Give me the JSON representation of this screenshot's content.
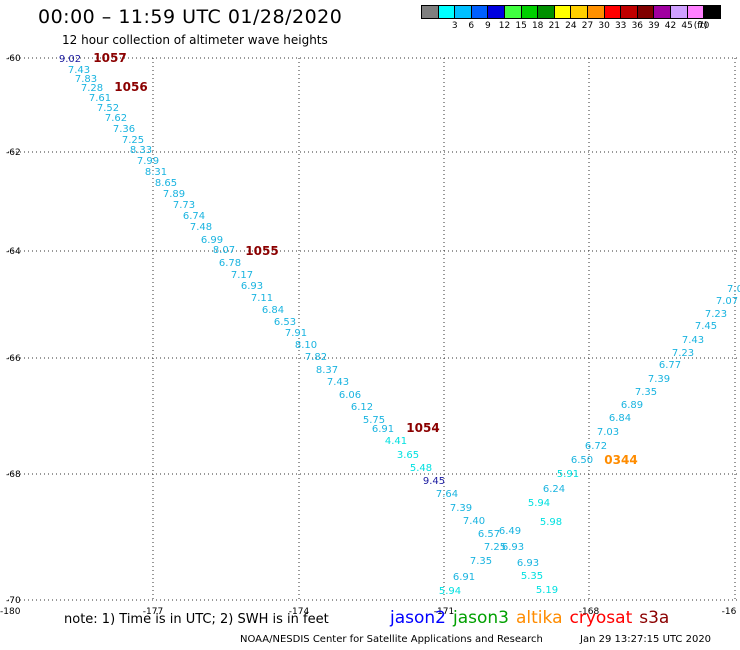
{
  "header": {
    "title": "00:00 – 11:59 UTC 01/28/2020",
    "subtitle": "12 hour collection of altimeter wave heights"
  },
  "scale": {
    "unit": "(ft)",
    "bins": [
      {
        "label": "",
        "color": "#7f7f7f"
      },
      {
        "label": "3",
        "color": "#00ffff"
      },
      {
        "label": "6",
        "color": "#00c0ff"
      },
      {
        "label": "9",
        "color": "#0060ff"
      },
      {
        "label": "12",
        "color": "#0000e0"
      },
      {
        "label": "15",
        "color": "#40ff40"
      },
      {
        "label": "18",
        "color": "#00d000"
      },
      {
        "label": "21",
        "color": "#009000"
      },
      {
        "label": "24",
        "color": "#ffff00"
      },
      {
        "label": "27",
        "color": "#ffd000"
      },
      {
        "label": "30",
        "color": "#ff9000"
      },
      {
        "label": "33",
        "color": "#ff0000"
      },
      {
        "label": "36",
        "color": "#c00000"
      },
      {
        "label": "39",
        "color": "#800000"
      },
      {
        "label": "42",
        "color": "#a000a0"
      },
      {
        "label": "45",
        "color": "#d0a0ff"
      },
      {
        "label": "70",
        "color": "#ff80ff"
      },
      {
        "label": "",
        "color": "#000000"
      }
    ]
  },
  "map": {
    "lon_labels": [
      "-180",
      "-177",
      "-174",
      "-171",
      "-168",
      "-16"
    ],
    "lat_labels": [
      "-60",
      "-62",
      "-64",
      "-66",
      "-68",
      "-70"
    ],
    "pass_labels": [
      {
        "text": "1057",
        "color": "#8b0000"
      },
      {
        "text": "1056",
        "color": "#8b0000"
      },
      {
        "text": "1055",
        "color": "#8b0000"
      },
      {
        "text": "1054",
        "color": "#8b0000"
      },
      {
        "text": "0344",
        "color": "#ff8c00"
      }
    ],
    "readings": [
      {
        "text": "9.02",
        "color": "#1a1aa0"
      },
      {
        "text": "7.43",
        "color": "#1ab4e0"
      },
      {
        "text": "7.83",
        "color": "#1ab4e0"
      },
      {
        "text": "7.28",
        "color": "#1ab4e0"
      },
      {
        "text": "7.61",
        "color": "#1ab4e0"
      },
      {
        "text": "7.52",
        "color": "#1ab4e0"
      },
      {
        "text": "7.62",
        "color": "#1ab4e0"
      },
      {
        "text": "7.36",
        "color": "#1ab4e0"
      },
      {
        "text": "7.25",
        "color": "#1ab4e0"
      },
      {
        "text": "8.33",
        "color": "#1ab4e0"
      },
      {
        "text": "7.99",
        "color": "#1ab4e0"
      },
      {
        "text": "8.31",
        "color": "#1ab4e0"
      },
      {
        "text": "8.65",
        "color": "#1ab4e0"
      },
      {
        "text": "7.89",
        "color": "#1ab4e0"
      },
      {
        "text": "7.73",
        "color": "#1ab4e0"
      },
      {
        "text": "6.74",
        "color": "#1ab4e0"
      },
      {
        "text": "7.48",
        "color": "#1ab4e0"
      },
      {
        "text": "6.99",
        "color": "#1ab4e0"
      },
      {
        "text": "8.07",
        "color": "#1ab4e0"
      },
      {
        "text": "6.78",
        "color": "#1ab4e0"
      },
      {
        "text": "7.17",
        "color": "#1ab4e0"
      },
      {
        "text": "6.93",
        "color": "#1ab4e0"
      },
      {
        "text": "7.11",
        "color": "#1ab4e0"
      },
      {
        "text": "6.84",
        "color": "#1ab4e0"
      },
      {
        "text": "6.53",
        "color": "#1ab4e0"
      },
      {
        "text": "7.91",
        "color": "#1ab4e0"
      },
      {
        "text": "8.10",
        "color": "#1ab4e0"
      },
      {
        "text": "7.82",
        "color": "#1ab4e0"
      },
      {
        "text": "8.37",
        "color": "#1ab4e0"
      },
      {
        "text": "7.43",
        "color": "#1ab4e0"
      },
      {
        "text": "6.06",
        "color": "#1ab4e0"
      },
      {
        "text": "6.12",
        "color": "#1ab4e0"
      },
      {
        "text": "5.75",
        "color": "#1ab4e0"
      },
      {
        "text": "6.91",
        "color": "#1ab4e0"
      },
      {
        "text": "4.41",
        "color": "#00e0e0"
      },
      {
        "text": "3.65",
        "color": "#00e0e0"
      },
      {
        "text": "5.48",
        "color": "#00e0e0"
      },
      {
        "text": "9.45",
        "color": "#1a1aa0"
      },
      {
        "text": "7.64",
        "color": "#1ab4e0"
      },
      {
        "text": "7.39",
        "color": "#1ab4e0"
      },
      {
        "text": "7.40",
        "color": "#1ab4e0"
      },
      {
        "text": "6.57",
        "color": "#1ab4e0"
      },
      {
        "text": "6.49",
        "color": "#1ab4e0"
      },
      {
        "text": "7.25",
        "color": "#1ab4e0"
      },
      {
        "text": "6.93",
        "color": "#1ab4e0"
      },
      {
        "text": "7.35",
        "color": "#1ab4e0"
      },
      {
        "text": "6.93",
        "color": "#1ab4e0"
      },
      {
        "text": "6.91",
        "color": "#1ab4e0"
      },
      {
        "text": "5.35",
        "color": "#00e0e0"
      },
      {
        "text": "5.94",
        "color": "#00e0e0"
      },
      {
        "text": "5.19",
        "color": "#00e0e0"
      },
      {
        "text": "5.94",
        "color": "#00e0e0"
      },
      {
        "text": "5.98",
        "color": "#00e0e0"
      },
      {
        "text": "6.24",
        "color": "#1ab4e0"
      },
      {
        "text": "5.91",
        "color": "#00e0e0"
      },
      {
        "text": "6.50",
        "color": "#1ab4e0"
      },
      {
        "text": "6.72",
        "color": "#1ab4e0"
      },
      {
        "text": "7.03",
        "color": "#1ab4e0"
      },
      {
        "text": "6.84",
        "color": "#1ab4e0"
      },
      {
        "text": "6.89",
        "color": "#1ab4e0"
      },
      {
        "text": "7.35",
        "color": "#1ab4e0"
      },
      {
        "text": "7.39",
        "color": "#1ab4e0"
      },
      {
        "text": "6.77",
        "color": "#1ab4e0"
      },
      {
        "text": "7.23",
        "color": "#1ab4e0"
      },
      {
        "text": "7.43",
        "color": "#1ab4e0"
      },
      {
        "text": "7.45",
        "color": "#1ab4e0"
      },
      {
        "text": "7.23",
        "color": "#1ab4e0"
      },
      {
        "text": "7.07",
        "color": "#1ab4e0"
      },
      {
        "text": "7.0",
        "color": "#1ab4e0"
      }
    ]
  },
  "footer": {
    "note": "note:  1) Time is in UTC;  2) SWH is in feet",
    "missions": [
      {
        "name": "jason2",
        "color": "#0000ff"
      },
      {
        "name": "jason3",
        "color": "#00a000"
      },
      {
        "name": "altika",
        "color": "#ff8c00"
      },
      {
        "name": "cryosat",
        "color": "#ff0000"
      },
      {
        "name": "s3a",
        "color": "#8b0000"
      }
    ],
    "credit": "NOAA/NESDIS Center for Satellite Applications and Research",
    "timestamp": "Jan 29 13:27:15 UTC 2020"
  }
}
